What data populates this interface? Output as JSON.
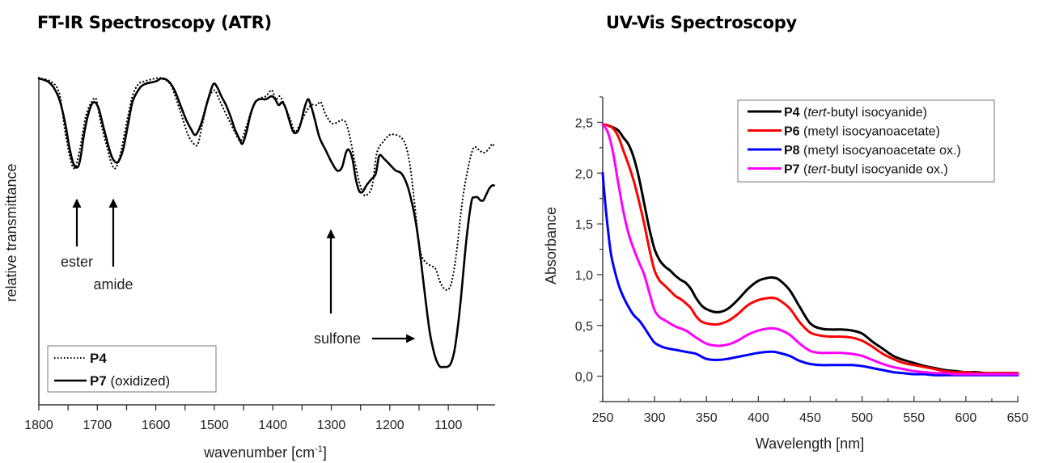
{
  "ir_title": "FT-IR Spectroscopy (ATR)",
  "uv_title": "UV-Vis Spectroscopy",
  "chart_data": [
    {
      "type": "line",
      "title": "FT-IR Spectroscopy (ATR)",
      "xlabel": "wavenumber [cm",
      "xlabel_sup": "-1",
      "xlabel_end": "]",
      "ylabel": "relative transmittance",
      "xlim": [
        1800,
        1020
      ],
      "ylim": [
        0,
        1
      ],
      "x_reversed": true,
      "xticks": [
        1800,
        1700,
        1600,
        1500,
        1400,
        1300,
        1200,
        1100
      ],
      "xtick_labels": [
        "1800",
        "1700",
        "1600",
        "1500",
        "1400",
        "1300",
        "1200",
        "1100"
      ],
      "grid": false,
      "legend_position": "bottom-left",
      "series": [
        {
          "name": "P4",
          "name_suffix": "",
          "style": "dotted",
          "color": "#000000",
          "x": [
            1800,
            1780,
            1765,
            1755,
            1745,
            1738,
            1730,
            1720,
            1710,
            1702,
            1695,
            1685,
            1675,
            1668,
            1660,
            1650,
            1640,
            1630,
            1620,
            1600,
            1590,
            1575,
            1565,
            1555,
            1545,
            1535,
            1528,
            1520,
            1510,
            1500,
            1492,
            1485,
            1475,
            1465,
            1455,
            1445,
            1435,
            1425,
            1412,
            1402,
            1395,
            1388,
            1380,
            1370,
            1362,
            1355,
            1345,
            1335,
            1325,
            1318,
            1310,
            1300,
            1292,
            1282,
            1275,
            1268,
            1260,
            1252,
            1245,
            1238,
            1230,
            1222,
            1210,
            1200,
            1190,
            1180,
            1172,
            1165,
            1160,
            1155,
            1150,
            1145,
            1138,
            1130,
            1122,
            1115,
            1110,
            1105,
            1100,
            1095,
            1090,
            1085,
            1080,
            1075,
            1070,
            1065,
            1060,
            1055,
            1048,
            1040,
            1032,
            1025,
            1022
          ],
          "y": [
            1.0,
            0.99,
            0.95,
            0.82,
            0.72,
            0.7,
            0.76,
            0.87,
            0.92,
            0.93,
            0.86,
            0.78,
            0.71,
            0.7,
            0.75,
            0.85,
            0.94,
            0.98,
            0.99,
            1.0,
            1.0,
            0.98,
            0.93,
            0.87,
            0.81,
            0.78,
            0.78,
            0.85,
            0.93,
            0.96,
            0.93,
            0.9,
            0.86,
            0.82,
            0.79,
            0.84,
            0.9,
            0.93,
            0.94,
            0.96,
            0.93,
            0.94,
            0.91,
            0.86,
            0.82,
            0.84,
            0.88,
            0.91,
            0.91,
            0.92,
            0.88,
            0.85,
            0.85,
            0.86,
            0.85,
            0.8,
            0.72,
            0.65,
            0.61,
            0.61,
            0.64,
            0.75,
            0.79,
            0.81,
            0.81,
            0.8,
            0.77,
            0.7,
            0.62,
            0.53,
            0.44,
            0.4,
            0.38,
            0.37,
            0.36,
            0.32,
            0.3,
            0.29,
            0.29,
            0.31,
            0.36,
            0.43,
            0.52,
            0.6,
            0.66,
            0.71,
            0.75,
            0.77,
            0.76,
            0.75,
            0.76,
            0.78,
            0.77
          ]
        },
        {
          "name": "P7",
          "name_suffix": " (oxidized)",
          "style": "solid",
          "color": "#000000",
          "x": [
            1800,
            1785,
            1775,
            1765,
            1755,
            1748,
            1742,
            1736,
            1730,
            1722,
            1714,
            1706,
            1698,
            1690,
            1682,
            1676,
            1670,
            1664,
            1656,
            1648,
            1640,
            1630,
            1620,
            1600,
            1590,
            1578,
            1568,
            1558,
            1548,
            1540,
            1532,
            1522,
            1512,
            1502,
            1495,
            1488,
            1480,
            1472,
            1465,
            1458,
            1452,
            1445,
            1438,
            1430,
            1422,
            1412,
            1402,
            1396,
            1390,
            1384,
            1378,
            1372,
            1365,
            1358,
            1352,
            1346,
            1340,
            1335,
            1328,
            1320,
            1310,
            1300,
            1290,
            1282,
            1275,
            1270,
            1264,
            1258,
            1252,
            1246,
            1240,
            1232,
            1224,
            1218,
            1210,
            1200,
            1190,
            1180,
            1170,
            1162,
            1156,
            1150,
            1144,
            1138,
            1132,
            1126,
            1120,
            1114,
            1108,
            1102,
            1096,
            1090,
            1084,
            1078,
            1072,
            1066,
            1060,
            1055,
            1050,
            1045,
            1040,
            1035,
            1030,
            1025,
            1022
          ],
          "y": [
            1.0,
            0.99,
            0.97,
            0.93,
            0.85,
            0.77,
            0.72,
            0.7,
            0.72,
            0.82,
            0.89,
            0.92,
            0.9,
            0.84,
            0.78,
            0.74,
            0.72,
            0.72,
            0.76,
            0.84,
            0.92,
            0.96,
            0.98,
            0.99,
            1.0,
            0.99,
            0.96,
            0.91,
            0.86,
            0.83,
            0.81,
            0.85,
            0.92,
            0.98,
            0.97,
            0.94,
            0.91,
            0.87,
            0.83,
            0.8,
            0.78,
            0.82,
            0.88,
            0.92,
            0.93,
            0.93,
            0.94,
            0.93,
            0.91,
            0.92,
            0.9,
            0.86,
            0.82,
            0.82,
            0.85,
            0.9,
            0.93,
            0.91,
            0.86,
            0.8,
            0.76,
            0.72,
            0.69,
            0.7,
            0.75,
            0.76,
            0.73,
            0.66,
            0.62,
            0.62,
            0.64,
            0.66,
            0.68,
            0.74,
            0.73,
            0.71,
            0.69,
            0.68,
            0.64,
            0.58,
            0.52,
            0.44,
            0.34,
            0.24,
            0.15,
            0.09,
            0.05,
            0.03,
            0.03,
            0.03,
            0.04,
            0.08,
            0.16,
            0.27,
            0.4,
            0.51,
            0.59,
            0.6,
            0.6,
            0.59,
            0.59,
            0.61,
            0.63,
            0.64,
            0.64
          ]
        }
      ],
      "annotations": [
        {
          "label": "ester",
          "x": 1738,
          "arrow_direction": "up"
        },
        {
          "label": "amide",
          "x": 1670,
          "arrow_direction": "up"
        },
        {
          "label": "",
          "x": 1300,
          "arrow_direction": "up"
        },
        {
          "label": "sulfone",
          "x": 1100,
          "arrow_direction": "right"
        }
      ]
    },
    {
      "type": "line",
      "title": "UV-Vis Spectroscopy",
      "xlabel": "Wavelength [nm]",
      "ylabel": "Absorbance",
      "xlim": [
        250,
        650
      ],
      "ylim": [
        -0.25,
        2.75
      ],
      "xticks": [
        250,
        300,
        350,
        400,
        450,
        500,
        550,
        600,
        650
      ],
      "xtick_labels": [
        "250",
        "300",
        "350",
        "400",
        "450",
        "500",
        "550",
        "600",
        "650"
      ],
      "yticks": [
        0.0,
        0.5,
        1.0,
        1.5,
        2.0,
        2.5
      ],
      "ytick_labels": [
        "0,0",
        "0,5",
        "1,0",
        "1,5",
        "2,0",
        "2,5"
      ],
      "grid": false,
      "legend_position": "top-right",
      "series": [
        {
          "name": "P4",
          "desc_prefix": " (",
          "desc_italic": "tert",
          "desc_rest": "-butyl isocyanide)",
          "color": "#000000",
          "x": [
            250,
            255,
            260,
            265,
            270,
            275,
            280,
            285,
            290,
            295,
            300,
            305,
            310,
            315,
            320,
            325,
            330,
            335,
            340,
            345,
            350,
            360,
            370,
            380,
            390,
            400,
            410,
            415,
            420,
            430,
            440,
            450,
            460,
            470,
            480,
            490,
            500,
            510,
            520,
            530,
            540,
            550,
            560,
            570,
            580,
            590,
            600,
            610,
            620,
            630,
            640,
            650
          ],
          "y": [
            2.48,
            2.47,
            2.45,
            2.42,
            2.35,
            2.28,
            2.15,
            1.95,
            1.7,
            1.45,
            1.25,
            1.14,
            1.08,
            1.04,
            0.99,
            0.95,
            0.92,
            0.86,
            0.77,
            0.7,
            0.66,
            0.63,
            0.66,
            0.75,
            0.86,
            0.94,
            0.97,
            0.97,
            0.95,
            0.85,
            0.68,
            0.52,
            0.47,
            0.46,
            0.46,
            0.45,
            0.42,
            0.34,
            0.27,
            0.2,
            0.16,
            0.13,
            0.1,
            0.08,
            0.06,
            0.05,
            0.04,
            0.04,
            0.03,
            0.03,
            0.03,
            0.03
          ]
        },
        {
          "name": "P6",
          "desc_prefix": " (metyl isocyanoacetate)",
          "desc_italic": "",
          "desc_rest": "",
          "color": "#ff0000",
          "x": [
            250,
            255,
            260,
            265,
            270,
            275,
            280,
            285,
            290,
            295,
            300,
            305,
            310,
            315,
            320,
            325,
            330,
            335,
            340,
            345,
            350,
            360,
            370,
            380,
            390,
            400,
            410,
            415,
            420,
            430,
            440,
            450,
            460,
            470,
            480,
            490,
            500,
            510,
            520,
            530,
            540,
            550,
            560,
            570,
            580,
            590,
            600,
            610,
            620,
            630,
            640,
            650
          ],
          "y": [
            2.48,
            2.47,
            2.44,
            2.36,
            2.22,
            2.08,
            1.92,
            1.72,
            1.5,
            1.25,
            1.04,
            0.94,
            0.89,
            0.84,
            0.79,
            0.76,
            0.72,
            0.67,
            0.59,
            0.54,
            0.52,
            0.51,
            0.54,
            0.61,
            0.7,
            0.75,
            0.77,
            0.77,
            0.75,
            0.67,
            0.53,
            0.43,
            0.4,
            0.39,
            0.39,
            0.38,
            0.35,
            0.29,
            0.22,
            0.17,
            0.13,
            0.11,
            0.09,
            0.07,
            0.05,
            0.04,
            0.04,
            0.03,
            0.03,
            0.03,
            0.03,
            0.03
          ]
        },
        {
          "name": "P8",
          "desc_prefix": " (metyl isocyanoacetate ox.)",
          "desc_italic": "",
          "desc_rest": "",
          "color": "#0000ff",
          "x": [
            250,
            252,
            255,
            258,
            262,
            266,
            270,
            275,
            280,
            285,
            290,
            295,
            300,
            305,
            310,
            320,
            330,
            340,
            350,
            360,
            370,
            380,
            390,
            400,
            410,
            415,
            420,
            430,
            440,
            450,
            460,
            470,
            480,
            490,
            500,
            510,
            520,
            530,
            540,
            550,
            560,
            570,
            580,
            590,
            600,
            610,
            620,
            630,
            640,
            650
          ],
          "y": [
            2.0,
            1.75,
            1.45,
            1.2,
            1.02,
            0.88,
            0.78,
            0.68,
            0.6,
            0.55,
            0.48,
            0.4,
            0.33,
            0.3,
            0.28,
            0.26,
            0.24,
            0.22,
            0.17,
            0.16,
            0.17,
            0.19,
            0.21,
            0.23,
            0.24,
            0.24,
            0.23,
            0.2,
            0.15,
            0.12,
            0.11,
            0.11,
            0.11,
            0.11,
            0.1,
            0.08,
            0.06,
            0.04,
            0.03,
            0.02,
            0.02,
            0.01,
            0.01,
            0.01,
            0.01,
            0.01,
            0.01,
            0.01,
            0.01,
            0.01
          ]
        },
        {
          "name": "P7",
          "desc_prefix": " (",
          "desc_italic": "tert",
          "desc_rest": "-butyl isocyanide ox.)",
          "color": "#ff00ff",
          "x": [
            250,
            255,
            260,
            265,
            270,
            275,
            280,
            285,
            290,
            295,
            300,
            305,
            310,
            320,
            330,
            340,
            350,
            360,
            370,
            380,
            390,
            400,
            410,
            415,
            420,
            430,
            440,
            450,
            460,
            470,
            480,
            490,
            500,
            510,
            520,
            530,
            540,
            550,
            560,
            570,
            580,
            590,
            600,
            610,
            620,
            630,
            640,
            650
          ],
          "y": [
            2.48,
            2.4,
            2.2,
            1.9,
            1.62,
            1.4,
            1.25,
            1.12,
            1.0,
            0.82,
            0.65,
            0.58,
            0.55,
            0.49,
            0.45,
            0.38,
            0.32,
            0.3,
            0.31,
            0.35,
            0.41,
            0.45,
            0.47,
            0.47,
            0.46,
            0.41,
            0.32,
            0.25,
            0.23,
            0.23,
            0.23,
            0.22,
            0.2,
            0.16,
            0.12,
            0.09,
            0.07,
            0.05,
            0.04,
            0.03,
            0.03,
            0.02,
            0.02,
            0.02,
            0.02,
            0.02,
            0.02,
            0.02
          ]
        }
      ]
    }
  ]
}
